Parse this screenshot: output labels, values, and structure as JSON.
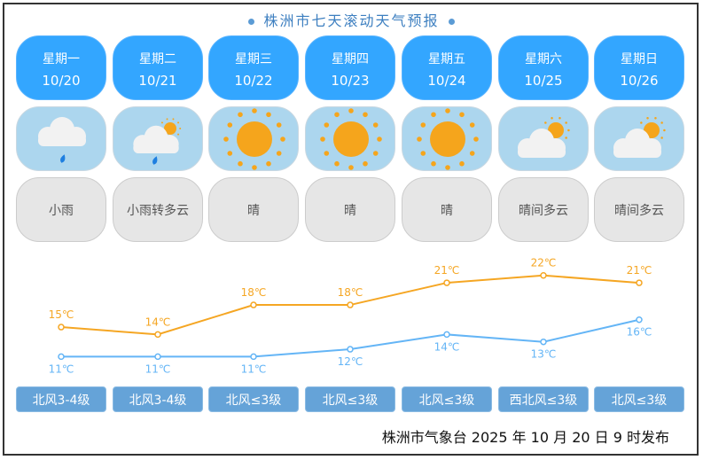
{
  "title": "株洲市七天滚动天气预报",
  "days": [
    {
      "weekday": "星期一",
      "date": "10/20",
      "icon": "cloud-rain-icon",
      "weather": "小雨",
      "high": 15,
      "low": 11,
      "high_label": "15℃",
      "low_label": "11℃",
      "wind": "北风3-4级"
    },
    {
      "weekday": "星期二",
      "date": "10/21",
      "icon": "cloud-sun-rain-icon",
      "weather": "小雨转多云",
      "high": 14,
      "low": 11,
      "high_label": "14℃",
      "low_label": "11℃",
      "wind": "北风3-4级"
    },
    {
      "weekday": "星期三",
      "date": "10/22",
      "icon": "sun-icon",
      "weather": "晴",
      "high": 18,
      "low": 11,
      "high_label": "18℃",
      "low_label": "11℃",
      "wind": "北风≤3级"
    },
    {
      "weekday": "星期四",
      "date": "10/23",
      "icon": "sun-icon",
      "weather": "晴",
      "high": 18,
      "low": 12,
      "high_label": "18℃",
      "low_label": "12℃",
      "wind": "北风≤3级"
    },
    {
      "weekday": "星期五",
      "date": "10/24",
      "icon": "sun-icon",
      "weather": "晴",
      "high": 21,
      "low": 14,
      "high_label": "21℃",
      "low_label": "14℃",
      "wind": "北风≤3级"
    },
    {
      "weekday": "星期六",
      "date": "10/25",
      "icon": "partly-cloudy-icon",
      "weather": "晴间多云",
      "high": 22,
      "low": 13,
      "high_label": "22℃",
      "low_label": "13℃",
      "wind": "西北风≤3级"
    },
    {
      "weekday": "星期日",
      "date": "10/26",
      "icon": "partly-cloudy-icon",
      "weather": "晴间多云",
      "high": 21,
      "low": 16,
      "high_label": "21℃",
      "low_label": "16℃",
      "wind": "北风≤3级"
    }
  ],
  "colors": {
    "high": "#f5a623",
    "low": "#64b5f6",
    "day_card": "#33a6ff",
    "wind_button": "#65a3d8"
  },
  "footer": "株洲市气象台 2025 年 10 月 20 日 9 时发布"
}
